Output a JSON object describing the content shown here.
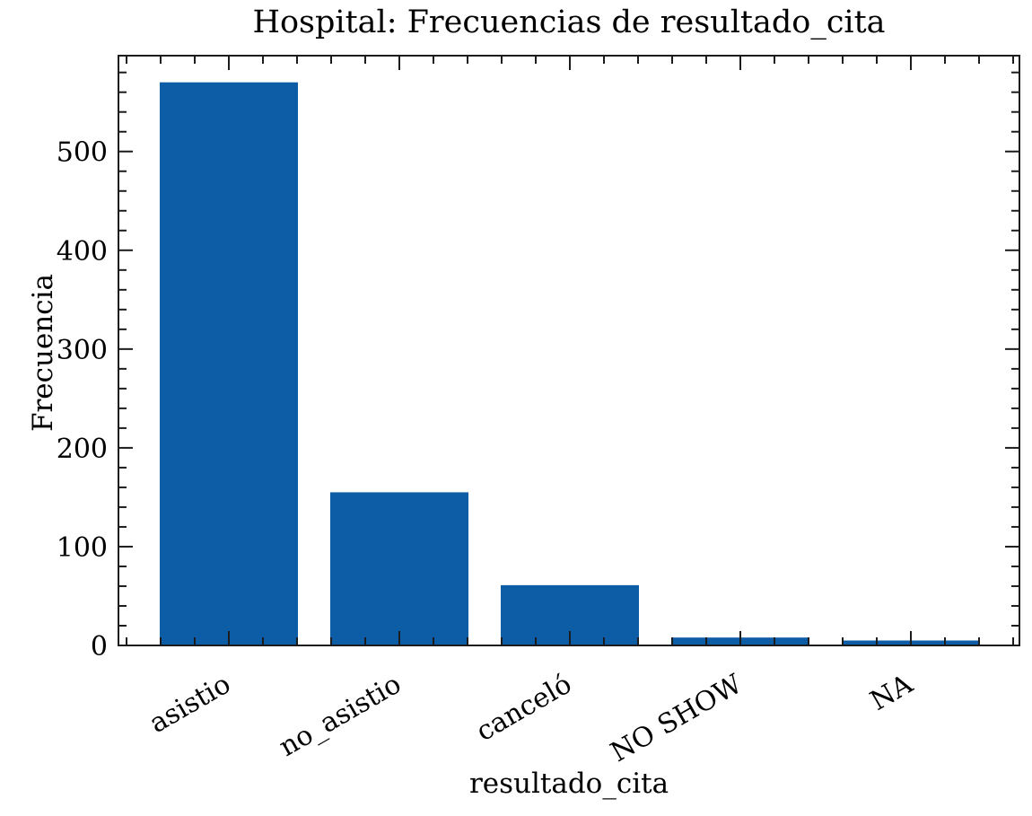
{
  "figure": {
    "background_color": "#ffffff"
  },
  "chart_data": {
    "type": "bar",
    "title": "Hospital: Frecuencias de resultado_cita",
    "xlabel": "resultado_cita",
    "ylabel": "Frecuencia",
    "categories": [
      "asistio",
      "no_asistio",
      "canceló",
      "NO SHOW",
      "NA"
    ],
    "values": [
      570,
      155,
      61,
      8,
      5
    ],
    "bar_color": "#0C5DA5",
    "axis_color": "#1c1c1c",
    "text_color": "#000000",
    "ylim": [
      0,
      597
    ],
    "yticks": [
      0,
      100,
      200,
      300,
      400,
      500
    ],
    "y_minor_step": 20,
    "x_minor_step": 0.2,
    "x_tick_label_rotation_deg": 30,
    "tick_direction": "in",
    "ticks_on_all_sides": true,
    "grid": false,
    "legend": null
  }
}
